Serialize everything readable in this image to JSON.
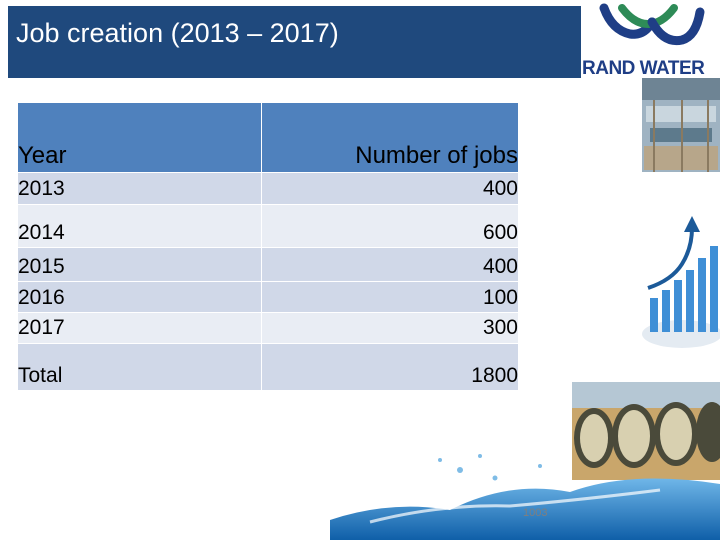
{
  "slide": {
    "title": "Job creation (2013 – 2017)",
    "logo_text": "RAND WATER",
    "page_number": "1003"
  },
  "table": {
    "headers": {
      "year": "Year",
      "jobs": "Number of jobs"
    },
    "rows": [
      {
        "year": "2013",
        "jobs": "400"
      },
      {
        "year": "2014",
        "jobs": "600"
      },
      {
        "year": "2015",
        "jobs": "400"
      },
      {
        "year": "2016",
        "jobs": "100"
      },
      {
        "year": "2017",
        "jobs": "300"
      },
      {
        "year": "Total",
        "jobs": "1800"
      }
    ]
  },
  "colors": {
    "title_bg": "#1f497d",
    "header_bg": "#4f81bd",
    "row_band_1": "#d0d8e8",
    "row_band_2": "#e9edf4",
    "logo_blue": "#1f3e86",
    "logo_green": "#2e8b57"
  },
  "icons": [
    "rand-water-logo-icon",
    "water-plant-photo",
    "growth-chart-photo",
    "pipes-photo",
    "water-splash-graphic"
  ]
}
